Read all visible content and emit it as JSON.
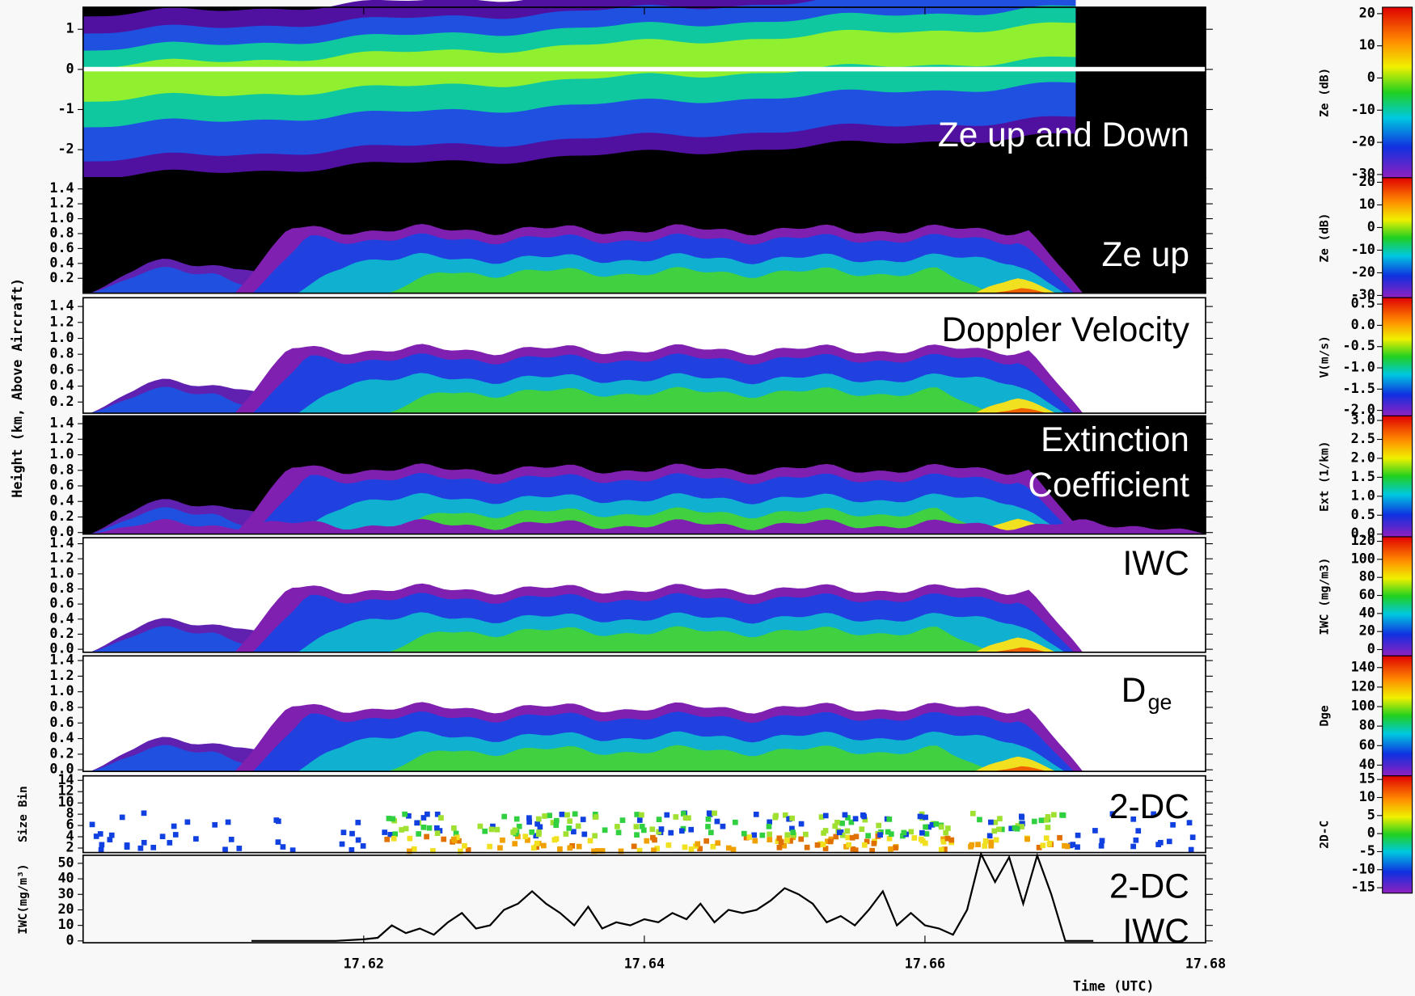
{
  "chart_data": [
    {
      "type": "heatmap",
      "annotation": [
        "Ze up and Down"
      ],
      "ylim": [
        -2.7,
        1.55
      ],
      "yticks": [
        -2,
        -1,
        0,
        1
      ],
      "colorbar": {
        "label": "Ze (dB)",
        "lim": [
          -31,
          22
        ],
        "ticks": [
          -30,
          -20,
          -10,
          0,
          10,
          20
        ]
      }
    },
    {
      "type": "heatmap",
      "annotation": [
        "Ze up"
      ],
      "ylim": [
        0,
        1.55
      ],
      "yticks": [
        0.2,
        0.4,
        0.6,
        0.8,
        {
          "value": 1,
          "label": "1.0"
        },
        1.2,
        1.4
      ],
      "colorbar": {
        "label": "Ze (dB)",
        "lim": [
          -31,
          22
        ],
        "ticks": [
          -30,
          -20,
          -10,
          0,
          10,
          20
        ]
      }
    },
    {
      "type": "heatmap",
      "annotation": [
        "Doppler Velocity"
      ],
      "ylim": [
        0.06,
        1.51
      ],
      "yticks": [
        0.2,
        0.4,
        0.6,
        0.8,
        {
          "value": 1,
          "label": "1.0"
        },
        1.2,
        1.4
      ],
      "colorbar": {
        "label": "V(m/s)",
        "lim": [
          -2.13,
          0.65
        ],
        "ticks": [
          0.5,
          {
            "value": 0,
            "label": "0.0"
          },
          -0.5,
          {
            "value": -1,
            "label": "-1.0"
          },
          -1.5,
          {
            "value": -2,
            "label": "-2.0"
          }
        ]
      }
    },
    {
      "type": "heatmap",
      "annotation": [
        "Extinction",
        "Coefficient"
      ],
      "ylim": [
        -0.02,
        1.5
      ],
      "yticks": [
        {
          "value": 0,
          "label": "0.0"
        },
        0.2,
        0.4,
        0.6,
        0.8,
        {
          "value": 1,
          "label": "1.0"
        },
        1.2,
        1.4
      ],
      "colorbar": {
        "label": "Ext (1/km)",
        "lim": [
          -0.07,
          3.12
        ],
        "ticks": [
          {
            "value": 0,
            "label": "0.0"
          },
          0.5,
          {
            "value": 1,
            "label": "1.0"
          },
          1.5,
          {
            "value": 2,
            "label": "2.0"
          },
          2.5,
          {
            "value": 3,
            "label": "3.0"
          }
        ]
      }
    },
    {
      "type": "heatmap",
      "annotation": [
        "IWC"
      ],
      "ylim": [
        -0.04,
        1.48
      ],
      "yticks": [
        {
          "value": 0,
          "label": "0.0"
        },
        0.2,
        0.4,
        0.6,
        0.8,
        {
          "value": 1,
          "label": "1.0"
        },
        1.2,
        1.4
      ],
      "colorbar": {
        "label": "IWC (mg/m3)",
        "lim": [
          -7,
          125
        ],
        "ticks": [
          0,
          20,
          40,
          60,
          80,
          100,
          120
        ]
      }
    },
    {
      "type": "heatmap",
      "annotation": [
        "D"
      ],
      "annotation_subscript": "ge",
      "ylim": [
        -0.02,
        1.46
      ],
      "yticks": [
        {
          "value": 0,
          "label": "0.0"
        },
        0.2,
        0.4,
        0.6,
        0.8,
        {
          "value": 1,
          "label": "1.0"
        },
        1.2,
        1.4
      ],
      "colorbar": {
        "label": "Dge",
        "lim": [
          29,
          152
        ],
        "ticks": [
          40,
          60,
          80,
          100,
          120,
          140
        ]
      }
    },
    {
      "type": "heatmap",
      "annotation": [
        "2-DC"
      ],
      "ylabel": "Size Bin",
      "ylim": [
        1.2,
        14.8
      ],
      "yticks": [
        2,
        4,
        6,
        8,
        10,
        12,
        14
      ],
      "colorbar": {
        "label": "2D-C",
        "lim": [
          -16.5,
          16
        ],
        "ticks": [
          -15,
          -10,
          -5,
          0,
          5,
          10,
          15
        ]
      }
    },
    {
      "type": "line",
      "annotation": [
        "2-DC",
        "IWC"
      ],
      "ylabel": "IWC(mg/m³)",
      "ylim": [
        -1.2,
        55.2
      ],
      "yticks": [
        0,
        10,
        20,
        30,
        40,
        50
      ],
      "color": "#000000",
      "x": [
        17.612,
        17.614,
        17.616,
        17.618,
        17.62,
        17.621,
        17.622,
        17.623,
        17.624,
        17.625,
        17.626,
        17.627,
        17.628,
        17.629,
        17.63,
        17.631,
        17.632,
        17.633,
        17.634,
        17.635,
        17.636,
        17.637,
        17.638,
        17.639,
        17.64,
        17.641,
        17.642,
        17.643,
        17.644,
        17.645,
        17.646,
        17.647,
        17.648,
        17.649,
        17.65,
        17.651,
        17.652,
        17.653,
        17.654,
        17.655,
        17.656,
        17.657,
        17.658,
        17.659,
        17.66,
        17.661,
        17.662,
        17.663,
        17.664,
        17.665,
        17.666,
        17.667,
        17.668,
        17.669,
        17.67,
        17.671,
        17.672
      ],
      "values": [
        0,
        0,
        0,
        0,
        1,
        2,
        10,
        5,
        8,
        4,
        12,
        18,
        8,
        10,
        20,
        24,
        32,
        24,
        18,
        10,
        22,
        8,
        12,
        10,
        14,
        12,
        18,
        14,
        24,
        12,
        20,
        18,
        20,
        26,
        34,
        30,
        24,
        12,
        16,
        10,
        20,
        32,
        10,
        18,
        10,
        8,
        4,
        20,
        56,
        38,
        54,
        24,
        55,
        30,
        0,
        0,
        0
      ]
    }
  ],
  "xlim": [
    17.6,
    17.68
  ],
  "xticks": [
    17.62,
    17.64,
    17.66,
    17.68
  ],
  "xlabel": "Time (UTC)",
  "ylabel": "Height (km, Above Aircraft)"
}
